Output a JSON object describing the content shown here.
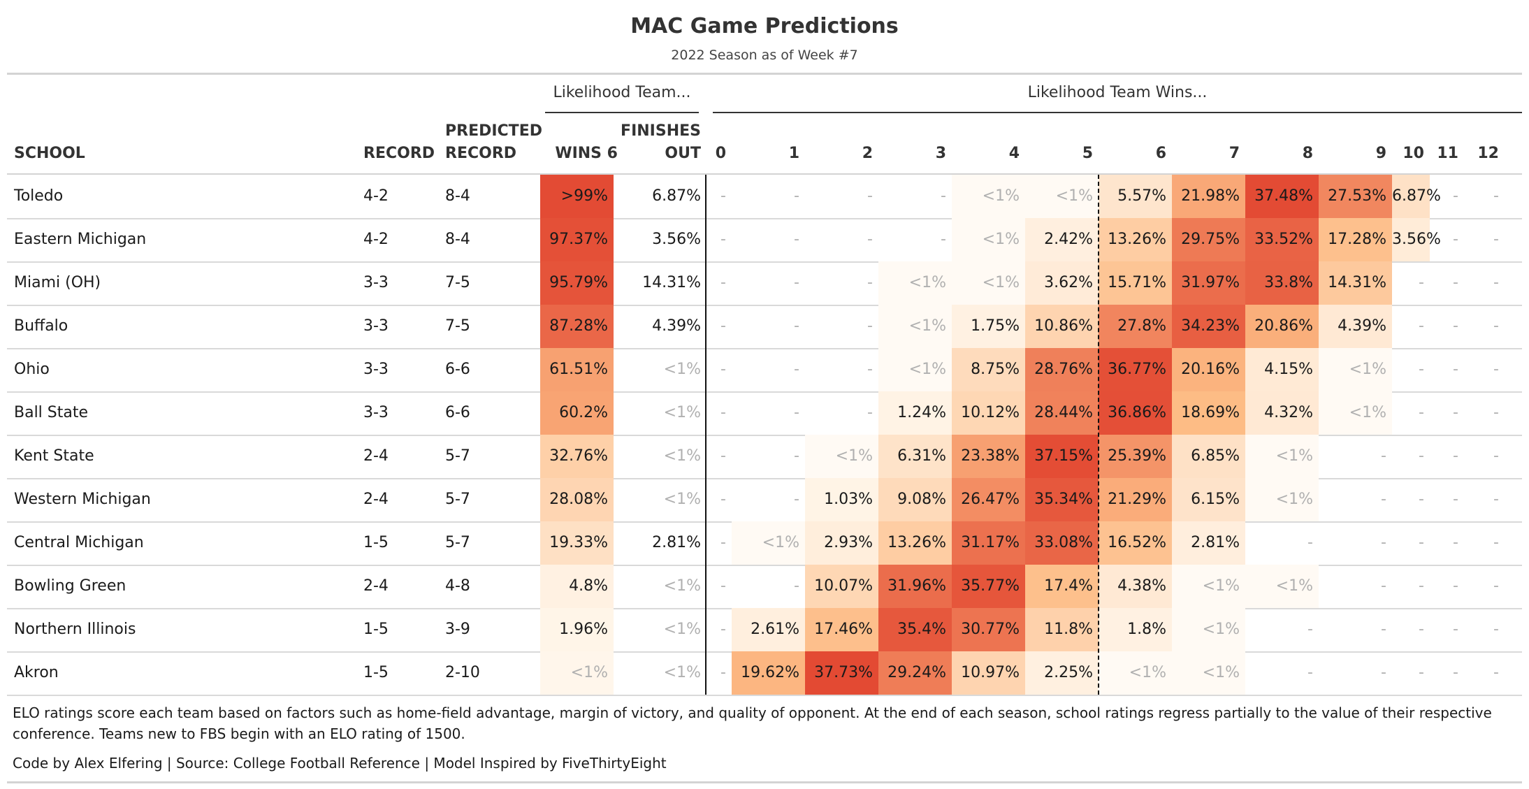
{
  "chart_data": {
    "type": "table",
    "title": "MAC Game Predictions",
    "subtitle": "2022 Season as of Week #7",
    "spanners": [
      "Likelihood Team...",
      "Likelihood Team Wins..."
    ],
    "columns": {
      "school": "SCHOOL",
      "record": "RECORD",
      "predicted": [
        "PREDICTED",
        "RECORD"
      ],
      "wins6": "WINS 6",
      "finishes": [
        "FINISHES",
        "OUT"
      ],
      "wins": [
        "0",
        "1",
        "2",
        "3",
        "4",
        "5",
        "6",
        "7",
        "8",
        "9",
        "10",
        "11",
        "12"
      ]
    },
    "heat_colors": {
      "low": "#fff7ec",
      "mid": "#fdbb84",
      "high": "#e34a33"
    },
    "faint_text_color": "#b0b0b0",
    "rows": [
      {
        "school": "Toledo",
        "record": "4-2",
        "predicted": "8-4",
        "wins6": ">99%",
        "wins6_value": 99.5,
        "finishes": "6.87%",
        "dist": [
          "-",
          "-",
          "-",
          "-",
          "<1%",
          "<1%",
          "5.57%",
          "21.98%",
          "37.48%",
          "27.53%",
          "6.87%",
          "-",
          "-"
        ]
      },
      {
        "school": "Eastern Michigan",
        "record": "4-2",
        "predicted": "8-4",
        "wins6": "97.37%",
        "wins6_value": 97.37,
        "finishes": "3.56%",
        "dist": [
          "-",
          "-",
          "-",
          "-",
          "<1%",
          "2.42%",
          "13.26%",
          "29.75%",
          "33.52%",
          "17.28%",
          "3.56%",
          "-",
          "-"
        ]
      },
      {
        "school": "Miami (OH)",
        "record": "3-3",
        "predicted": "7-5",
        "wins6": "95.79%",
        "wins6_value": 95.79,
        "finishes": "14.31%",
        "dist": [
          "-",
          "-",
          "-",
          "<1%",
          "<1%",
          "3.62%",
          "15.71%",
          "31.97%",
          "33.8%",
          "14.31%",
          "-",
          "-",
          "-"
        ]
      },
      {
        "school": "Buffalo",
        "record": "3-3",
        "predicted": "7-5",
        "wins6": "87.28%",
        "wins6_value": 87.28,
        "finishes": "4.39%",
        "dist": [
          "-",
          "-",
          "-",
          "<1%",
          "1.75%",
          "10.86%",
          "27.8%",
          "34.23%",
          "20.86%",
          "4.39%",
          "-",
          "-",
          "-"
        ]
      },
      {
        "school": "Ohio",
        "record": "3-3",
        "predicted": "6-6",
        "wins6": "61.51%",
        "wins6_value": 61.51,
        "finishes": "<1%",
        "dist": [
          "-",
          "-",
          "-",
          "<1%",
          "8.75%",
          "28.76%",
          "36.77%",
          "20.16%",
          "4.15%",
          "<1%",
          "-",
          "-",
          "-"
        ]
      },
      {
        "school": "Ball State",
        "record": "3-3",
        "predicted": "6-6",
        "wins6": "60.2%",
        "wins6_value": 60.2,
        "finishes": "<1%",
        "dist": [
          "-",
          "-",
          "-",
          "1.24%",
          "10.12%",
          "28.44%",
          "36.86%",
          "18.69%",
          "4.32%",
          "<1%",
          "-",
          "-",
          "-"
        ]
      },
      {
        "school": "Kent State",
        "record": "2-4",
        "predicted": "5-7",
        "wins6": "32.76%",
        "wins6_value": 32.76,
        "finishes": "<1%",
        "dist": [
          "-",
          "-",
          "<1%",
          "6.31%",
          "23.38%",
          "37.15%",
          "25.39%",
          "6.85%",
          "<1%",
          "-",
          "-",
          "-",
          "-"
        ]
      },
      {
        "school": "Western Michigan",
        "record": "2-4",
        "predicted": "5-7",
        "wins6": "28.08%",
        "wins6_value": 28.08,
        "finishes": "<1%",
        "dist": [
          "-",
          "-",
          "1.03%",
          "9.08%",
          "26.47%",
          "35.34%",
          "21.29%",
          "6.15%",
          "<1%",
          "-",
          "-",
          "-",
          "-"
        ]
      },
      {
        "school": "Central Michigan",
        "record": "1-5",
        "predicted": "5-7",
        "wins6": "19.33%",
        "wins6_value": 19.33,
        "finishes": "2.81%",
        "dist": [
          "-",
          "<1%",
          "2.93%",
          "13.26%",
          "31.17%",
          "33.08%",
          "16.52%",
          "2.81%",
          "-",
          "-",
          "-",
          "-",
          "-"
        ]
      },
      {
        "school": "Bowling Green",
        "record": "2-4",
        "predicted": "4-8",
        "wins6": "4.8%",
        "wins6_value": 4.8,
        "finishes": "<1%",
        "dist": [
          "-",
          "-",
          "10.07%",
          "31.96%",
          "35.77%",
          "17.4%",
          "4.38%",
          "<1%",
          "<1%",
          "-",
          "-",
          "-",
          "-"
        ]
      },
      {
        "school": "Northern Illinois",
        "record": "1-5",
        "predicted": "3-9",
        "wins6": "1.96%",
        "wins6_value": 1.96,
        "finishes": "<1%",
        "dist": [
          "-",
          "2.61%",
          "17.46%",
          "35.4%",
          "30.77%",
          "11.8%",
          "1.8%",
          "<1%",
          "-",
          "-",
          "-",
          "-",
          "-"
        ]
      },
      {
        "school": "Akron",
        "record": "1-5",
        "predicted": "2-10",
        "wins6": "<1%",
        "wins6_value": 0.5,
        "finishes": "<1%",
        "dist": [
          "-",
          "19.62%",
          "37.73%",
          "29.24%",
          "10.97%",
          "2.25%",
          "<1%",
          "<1%",
          "-",
          "-",
          "-",
          "-",
          "-"
        ]
      }
    ],
    "notes": [
      "ELO ratings score each team based on factors such as home-field advantage, margin of victory, and quality of opponent. At the end of each season, school ratings regress partially to the value of their respective conference. Teams new to FBS begin with an ELO rating of 1500.",
      "Code by Alex Elfering | Source: College Football Reference | Model Inspired by FiveThirtyEight"
    ]
  }
}
